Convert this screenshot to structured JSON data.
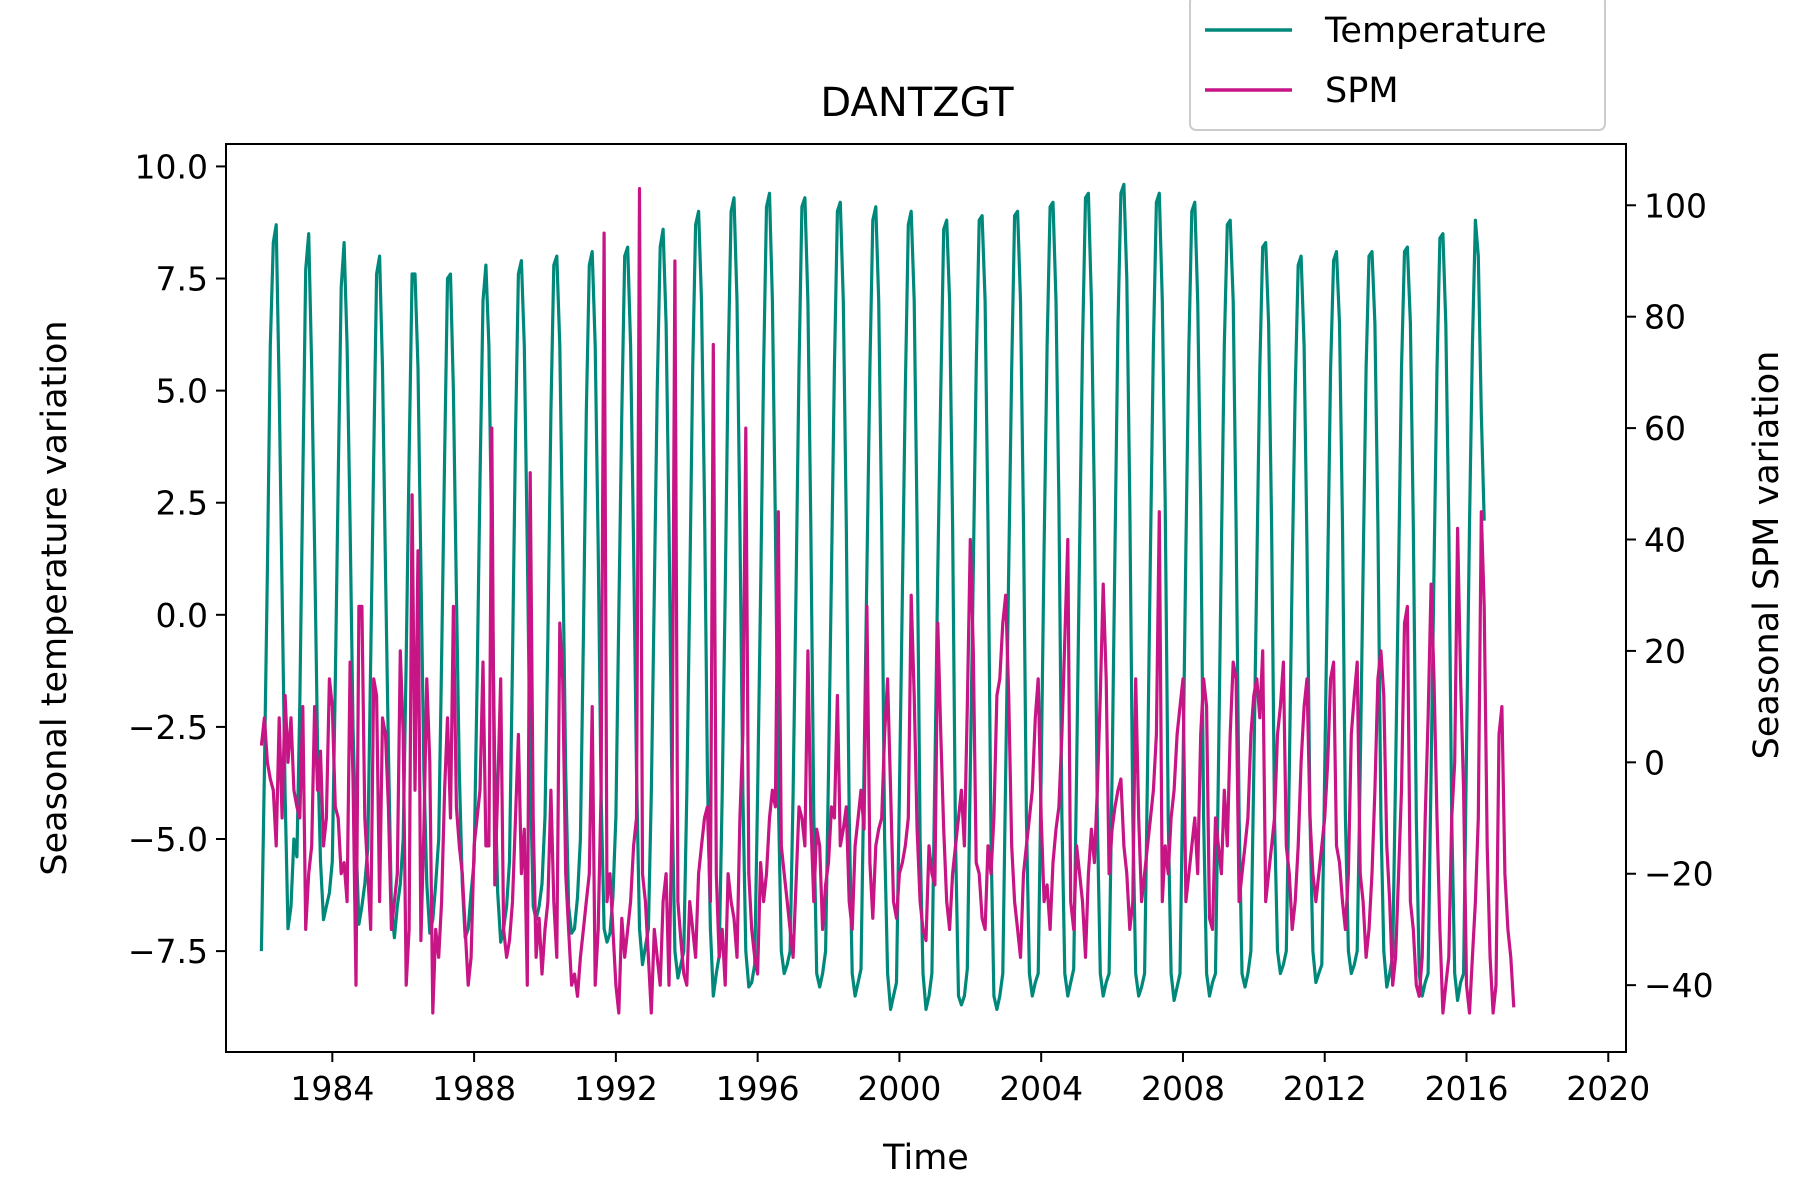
{
  "chart_data": {
    "type": "line",
    "title": "DANTZGT",
    "xlabel": "Time",
    "ylabel_left": "Seasonal temperature variation",
    "ylabel_right": "Seasonal SPM variation",
    "xlim": [
      1981.0,
      2020.5
    ],
    "ylim_left": [
      -9.75,
      10.5
    ],
    "ylim_right": [
      -52,
      111
    ],
    "x_ticks": [
      1984,
      1988,
      1992,
      1996,
      2000,
      2004,
      2008,
      2012,
      2016,
      2020
    ],
    "y_ticks_left": [
      10.0,
      7.5,
      5.0,
      2.5,
      0.0,
      -2.5,
      -5.0,
      -7.5
    ],
    "y_tick_labels_left": [
      "10.0",
      "7.5",
      "5.0",
      "2.5",
      "0.0",
      "−2.5",
      "−5.0",
      "−7.5"
    ],
    "y_ticks_right": [
      100,
      80,
      60,
      40,
      20,
      0,
      -20,
      -40
    ],
    "y_tick_labels_right": [
      "100",
      "80",
      "60",
      "40",
      "20",
      "0",
      "−20",
      "−40"
    ],
    "legend": {
      "placement": "top-right, above plot"
    },
    "grid": false,
    "series": [
      {
        "name": "Temperature",
        "axis": "left",
        "color": "#00897b",
        "x_start": 1982.0,
        "x_step": 0.0833333,
        "values": [
          -7.5,
          -3.5,
          1.0,
          6.0,
          8.3,
          8.7,
          5.0,
          0.5,
          -4.0,
          -7.0,
          -6.5,
          -5.0,
          -5.4,
          -2.0,
          3.0,
          7.7,
          8.5,
          5.5,
          1.5,
          -3.0,
          -5.5,
          -6.8,
          -6.5,
          -6.2,
          -5.5,
          -1.5,
          3.0,
          7.3,
          8.3,
          6.0,
          2.0,
          -2.5,
          -5.0,
          -6.9,
          -6.5,
          -6.0,
          -5.2,
          -1.0,
          3.5,
          7.6,
          8.0,
          5.5,
          1.0,
          -3.0,
          -6.5,
          -7.2,
          -6.5,
          -6.0,
          -5.0,
          -1.0,
          3.5,
          7.6,
          7.6,
          5.5,
          1.0,
          -3.5,
          -6.0,
          -7.1,
          -6.8,
          -6.0,
          -5.0,
          -1.0,
          3.5,
          7.5,
          7.6,
          5.0,
          0.5,
          -3.5,
          -6.0,
          -7.2,
          -7.0,
          -6.2,
          -5.5,
          -1.5,
          3.0,
          7.0,
          7.8,
          6.0,
          1.5,
          -3.5,
          -6.2,
          -7.3,
          -7.0,
          -6.5,
          -5.5,
          -1.0,
          4.0,
          7.6,
          7.9,
          6.0,
          1.5,
          -3.5,
          -6.5,
          -6.8,
          -6.5,
          -6.0,
          -4.5,
          -0.5,
          4.5,
          7.8,
          8.0,
          6.0,
          1.5,
          -3.5,
          -6.5,
          -7.1,
          -7.0,
          -6.3,
          -5.0,
          -0.5,
          4.5,
          7.8,
          8.1,
          6.0,
          1.5,
          -4.0,
          -7.0,
          -7.3,
          -7.1,
          -6.3,
          -4.5,
          0.0,
          4.5,
          8.0,
          8.2,
          6.0,
          1.5,
          -3.5,
          -7.0,
          -7.8,
          -7.4,
          -7.0,
          -4.0,
          0.5,
          5.0,
          8.2,
          8.6,
          6.5,
          2.0,
          -4.0,
          -7.5,
          -8.1,
          -7.8,
          -7.5,
          -4.0,
          0.5,
          5.5,
          8.7,
          9.0,
          7.0,
          2.5,
          -3.5,
          -7.0,
          -8.5,
          -8.0,
          -7.6,
          -4.0,
          0.5,
          5.5,
          9.0,
          9.3,
          7.0,
          2.0,
          -4.0,
          -7.5,
          -8.3,
          -8.2,
          -7.8,
          -4.0,
          0.5,
          5.5,
          9.1,
          9.4,
          7.0,
          2.0,
          -4.0,
          -7.5,
          -8.0,
          -7.8,
          -7.5,
          -4.0,
          0.5,
          5.5,
          9.1,
          9.3,
          7.0,
          2.0,
          -4.5,
          -8.0,
          -8.3,
          -8.0,
          -7.5,
          -3.5,
          1.0,
          5.5,
          9.0,
          9.2,
          7.0,
          2.0,
          -4.5,
          -8.0,
          -8.5,
          -8.2,
          -7.9,
          -3.5,
          1.0,
          5.5,
          8.8,
          9.1,
          7.0,
          2.0,
          -5.0,
          -8.0,
          -8.8,
          -8.5,
          -8.2,
          -4.0,
          0.5,
          5.0,
          8.7,
          9.0,
          7.0,
          2.0,
          -5.0,
          -8.0,
          -8.8,
          -8.5,
          -8.0,
          -3.5,
          1.0,
          5.0,
          8.6,
          8.8,
          7.0,
          2.0,
          -5.0,
          -8.5,
          -8.7,
          -8.5,
          -7.9,
          -3.5,
          1.0,
          5.5,
          8.8,
          8.9,
          7.0,
          2.0,
          -5.0,
          -8.5,
          -8.8,
          -8.5,
          -8.0,
          -3.5,
          1.0,
          5.5,
          8.9,
          9.0,
          7.0,
          2.0,
          -4.5,
          -8.0,
          -8.5,
          -8.2,
          -8.0,
          -3.5,
          1.5,
          6.0,
          9.1,
          9.2,
          7.0,
          2.5,
          -4.5,
          -8.0,
          -8.5,
          -8.2,
          -7.9,
          -3.5,
          1.5,
          6.0,
          9.3,
          9.4,
          7.0,
          2.5,
          -4.5,
          -8.0,
          -8.5,
          -8.2,
          -8.0,
          -3.5,
          1.5,
          6.5,
          9.4,
          9.6,
          7.5,
          2.5,
          -4.5,
          -8.0,
          -8.5,
          -8.3,
          -8.0,
          -3.5,
          1.5,
          6.0,
          9.2,
          9.4,
          7.0,
          2.5,
          -4.5,
          -8.0,
          -8.6,
          -8.3,
          -8.0,
          -3.5,
          1.5,
          6.0,
          9.0,
          9.2,
          7.0,
          2.5,
          -4.5,
          -8.0,
          -8.5,
          -8.2,
          -8.0,
          -3.5,
          1.5,
          6.0,
          8.7,
          8.8,
          7.0,
          2.0,
          -4.5,
          -8.0,
          -8.3,
          -8.0,
          -7.5,
          -3.5,
          1.0,
          5.5,
          8.2,
          8.3,
          6.5,
          2.0,
          -4.5,
          -7.5,
          -8.0,
          -7.8,
          -7.5,
          -3.5,
          1.0,
          5.0,
          7.8,
          8.0,
          6.0,
          1.5,
          -4.5,
          -7.5,
          -8.2,
          -8.0,
          -7.8,
          -3.5,
          1.0,
          5.5,
          7.9,
          8.1,
          6.5,
          2.0,
          -4.5,
          -7.5,
          -8.0,
          -7.8,
          -7.5,
          -3.5,
          1.0,
          5.5,
          8.0,
          8.1,
          6.5,
          2.0,
          -4.5,
          -7.5,
          -8.3,
          -8.0,
          -7.6,
          -3.5,
          1.0,
          5.5,
          8.1,
          8.2,
          6.5,
          2.0,
          -4.5,
          -8.0,
          -8.5,
          -8.2,
          -8.0,
          -3.5,
          1.0,
          5.5,
          8.4,
          8.5,
          6.5,
          2.0,
          -4.5,
          -8.0,
          -8.6,
          -8.2,
          -8.0,
          -3.0,
          2.0,
          6.0,
          8.8,
          8.0,
          4.5,
          2.1
        ]
      },
      {
        "name": "SPM",
        "axis": "right",
        "color": "#c71585",
        "x_start": 1982.0,
        "x_step": 0.0833333,
        "values": [
          3,
          8,
          0,
          -3,
          -5,
          -15,
          8,
          -10,
          12,
          0,
          8,
          -5,
          -8,
          -10,
          10,
          -30,
          -20,
          -15,
          10,
          -5,
          2,
          -15,
          -10,
          15,
          10,
          -8,
          -10,
          -20,
          -18,
          -25,
          18,
          -3,
          -40,
          28,
          28,
          -10,
          -20,
          -30,
          15,
          12,
          -25,
          8,
          5,
          -8,
          -30,
          -25,
          -20,
          20,
          5,
          -40,
          -30,
          48,
          -5,
          38,
          -32,
          -12,
          15,
          0,
          -45,
          -30,
          -35,
          -25,
          -5,
          8,
          -10,
          28,
          -8,
          -15,
          -20,
          -30,
          -40,
          -35,
          -15,
          -10,
          -5,
          18,
          -15,
          -15,
          60,
          -22,
          -5,
          15,
          -30,
          -35,
          -32,
          -25,
          -10,
          5,
          -20,
          -12,
          -40,
          52,
          -10,
          -35,
          -28,
          -38,
          -30,
          -25,
          -5,
          -25,
          -35,
          25,
          15,
          -20,
          -30,
          -40,
          -38,
          -42,
          -35,
          -30,
          -25,
          -20,
          10,
          -40,
          -30,
          -5,
          95,
          -25,
          -20,
          -30,
          -40,
          -45,
          -28,
          -35,
          -30,
          -25,
          -15,
          -10,
          103,
          -20,
          -25,
          -35,
          -45,
          -30,
          -35,
          -40,
          -25,
          -20,
          -40,
          -10,
          90,
          -25,
          -32,
          -38,
          -40,
          -25,
          -30,
          -35,
          -20,
          -15,
          -10,
          -8,
          -25,
          75,
          -20,
          -35,
          -30,
          -40,
          -20,
          -25,
          -28,
          -35,
          -10,
          5,
          60,
          -20,
          -30,
          -35,
          -38,
          -18,
          -25,
          -20,
          -10,
          -5,
          -8,
          45,
          -15,
          -20,
          -25,
          -30,
          -35,
          -22,
          -8,
          -10,
          -15,
          20,
          -10,
          -25,
          -12,
          -15,
          -30,
          -22,
          -18,
          -8,
          -10,
          12,
          -15,
          -12,
          -8,
          -25,
          -30,
          -15,
          -10,
          -5,
          -12,
          28,
          -18,
          -28,
          -15,
          -12,
          -10,
          5,
          15,
          -5,
          -25,
          -28,
          -20,
          -18,
          -15,
          -10,
          30,
          12,
          -12,
          -25,
          -30,
          -32,
          -15,
          -20,
          -22,
          25,
          5,
          -12,
          -25,
          -30,
          -20,
          -15,
          -10,
          -5,
          -15,
          10,
          40,
          20,
          -18,
          -20,
          -28,
          -30,
          -15,
          -20,
          -10,
          12,
          15,
          25,
          30,
          12,
          -15,
          -25,
          -30,
          -35,
          -20,
          -15,
          -10,
          -5,
          8,
          15,
          -10,
          -25,
          -22,
          -30,
          -18,
          -12,
          -8,
          5,
          22,
          40,
          -25,
          -30,
          -15,
          -20,
          -25,
          -35,
          -20,
          -12,
          -18,
          -5,
          12,
          32,
          15,
          -20,
          -12,
          -8,
          -5,
          -3,
          -15,
          -20,
          -30,
          -25,
          15,
          -10,
          -25,
          -20,
          -15,
          -10,
          -5,
          5,
          45,
          -25,
          -15,
          -20,
          -10,
          -5,
          5,
          10,
          15,
          -25,
          -20,
          -15,
          -10,
          -20,
          5,
          15,
          10,
          -28,
          -30,
          -10,
          -15,
          -20,
          -5,
          -15,
          5,
          18,
          15,
          -25,
          -20,
          -15,
          -10,
          5,
          12,
          15,
          8,
          20,
          -25,
          -20,
          -15,
          -10,
          5,
          10,
          18,
          -15,
          -20,
          -30,
          -25,
          -15,
          0,
          10,
          15,
          -10,
          -20,
          -25,
          -20,
          -15,
          -10,
          0,
          15,
          18,
          -15,
          -18,
          -25,
          -30,
          -20,
          5,
          12,
          18,
          -20,
          -25,
          -35,
          -30,
          -20,
          -5,
          15,
          20,
          12,
          -15,
          -25,
          -40,
          -35,
          -20,
          -5,
          25,
          28,
          -25,
          -30,
          -40,
          -42,
          -35,
          -10,
          8,
          32,
          15,
          -10,
          -30,
          -45,
          -40,
          -35,
          -10,
          0,
          42,
          15,
          -5,
          -40,
          -45,
          -35,
          -25,
          -10,
          45,
          28,
          -15,
          -35,
          -45,
          -40,
          5,
          10,
          -20,
          -30,
          -35,
          -44
        ]
      }
    ]
  }
}
